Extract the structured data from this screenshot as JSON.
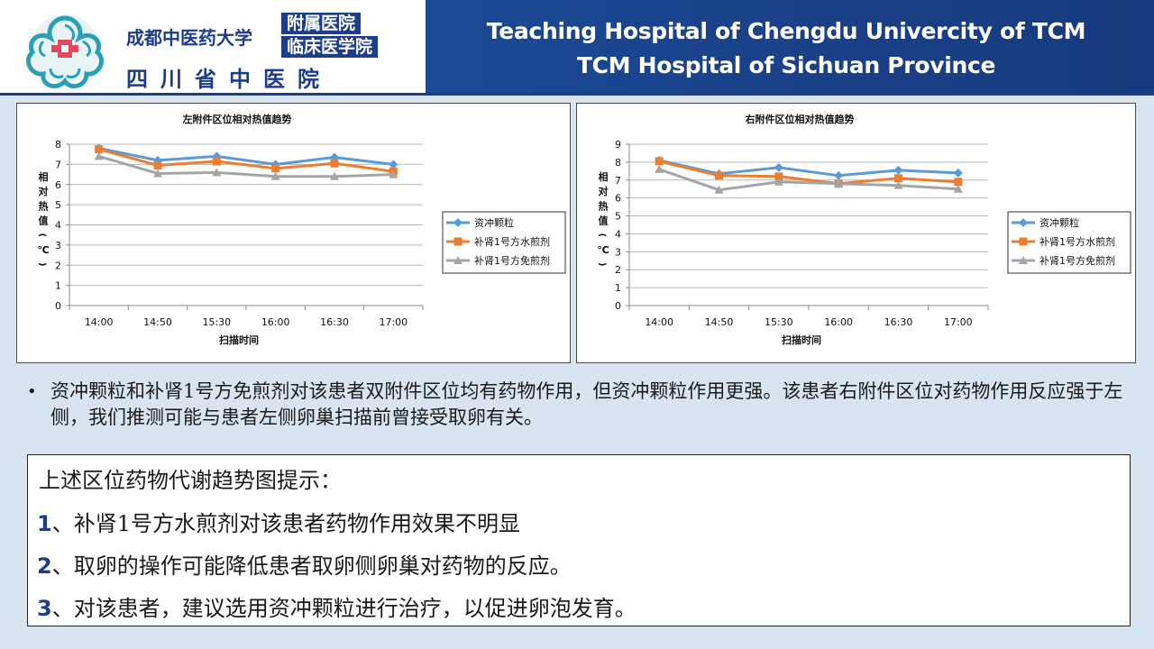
{
  "header": {
    "logo": {
      "university": "成都中医药大学",
      "affiliated": "附属医院",
      "clinical": "临床医学院",
      "hospital": "四川省中医院"
    },
    "title_line1": "Teaching Hospital of Chengdu Univercity of TCM",
    "title_line2": "TCM Hospital of Sichuan Province"
  },
  "colors": {
    "series1": "#5b9bd5",
    "series2": "#ed7d31",
    "series3": "#a5a5a5",
    "header_blue": "#1a3f86"
  },
  "chart_data": [
    {
      "type": "line",
      "title": "左附件区位相对热值趋势",
      "xlabel": "扫描时间",
      "ylabel": "相对热值（℃）",
      "categories": [
        "14:00",
        "14:50",
        "15:30",
        "16:00",
        "16:30",
        "17:00"
      ],
      "ylim": [
        0,
        8
      ],
      "yticks": [
        0,
        1,
        2,
        3,
        4,
        5,
        6,
        7,
        8
      ],
      "grid": true,
      "legend_position": "right",
      "series": [
        {
          "name": "资冲颗粒",
          "values": [
            7.8,
            7.2,
            7.4,
            7.0,
            7.35,
            7.0
          ]
        },
        {
          "name": "补肾1号方水煎剂",
          "values": [
            7.75,
            6.95,
            7.15,
            6.8,
            7.05,
            6.65
          ]
        },
        {
          "name": "补肾1号方免煎剂",
          "values": [
            7.4,
            6.55,
            6.6,
            6.4,
            6.4,
            6.5
          ]
        }
      ]
    },
    {
      "type": "line",
      "title": "右附件区位相对热值趋势",
      "xlabel": "扫描时间",
      "ylabel": "相对热值（℃）",
      "categories": [
        "14:00",
        "14:50",
        "15:30",
        "16:00",
        "16:30",
        "17:00"
      ],
      "ylim": [
        0,
        9
      ],
      "yticks": [
        0,
        1,
        2,
        3,
        4,
        5,
        6,
        7,
        8,
        9
      ],
      "grid": true,
      "legend_position": "right",
      "series": [
        {
          "name": "资冲颗粒",
          "values": [
            8.1,
            7.35,
            7.7,
            7.25,
            7.55,
            7.4
          ]
        },
        {
          "name": "补肾1号方水煎剂",
          "values": [
            8.05,
            7.25,
            7.2,
            6.8,
            7.1,
            6.9
          ]
        },
        {
          "name": "补肾1号方免煎剂",
          "values": [
            7.6,
            6.45,
            6.9,
            6.8,
            6.7,
            6.5
          ]
        }
      ]
    }
  ],
  "bullet": "资冲颗粒和补肾1号方免煎剂对该患者双附件区位均有药物作用，但资冲颗粒作用更强。该患者右附件区位对药物作用反应强于左侧，我们推测可能与患者左侧卵巢扫描前曾接受取卵有关。",
  "summary": {
    "title": "上述区位药物代谢趋势图提示：",
    "items": [
      {
        "num": "1",
        "text": "、补肾1号方水煎剂对该患者药物作用效果不明显"
      },
      {
        "num": "2",
        "text": "、取卵的操作可能降低患者取卵侧卵巢对药物的反应。"
      },
      {
        "num": "3",
        "text": "、对该患者，建议选用资冲颗粒进行治疗，以促进卵泡发育。"
      }
    ]
  }
}
